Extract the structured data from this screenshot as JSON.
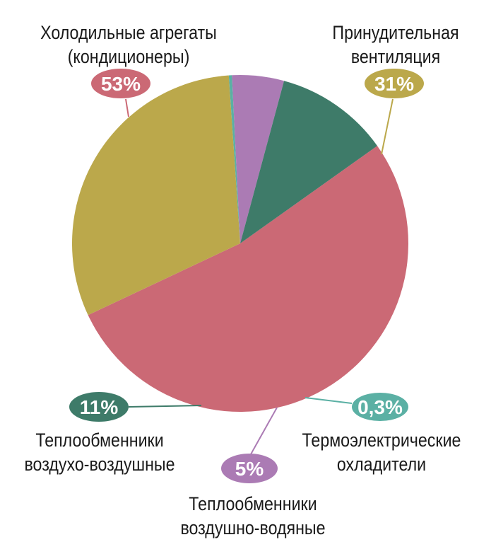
{
  "chart_data": {
    "type": "pie",
    "slices": [
      {
        "label_lines": [
          "Холодильные агрегаты",
          "(кондиционеры)"
        ],
        "value": 53,
        "value_label": "53%",
        "color": "#cb6975"
      },
      {
        "label_lines": [
          "Принудительная",
          "вентиляция"
        ],
        "value": 31,
        "value_label": "31%",
        "color": "#bba84b"
      },
      {
        "label_lines": [
          "Термоэлектрические",
          "охладители"
        ],
        "value": 0.3,
        "value_label": "0,3%",
        "color": "#5bb0a4"
      },
      {
        "label_lines": [
          "Теплообменники",
          "воздушно-водяные"
        ],
        "value": 5,
        "value_label": "5%",
        "color": "#ab7bb4"
      },
      {
        "label_lines": [
          "Теплообменники",
          "воздухо-воздушные"
        ],
        "value": 11,
        "value_label": "11%",
        "color": "#3e7b69"
      }
    ]
  }
}
